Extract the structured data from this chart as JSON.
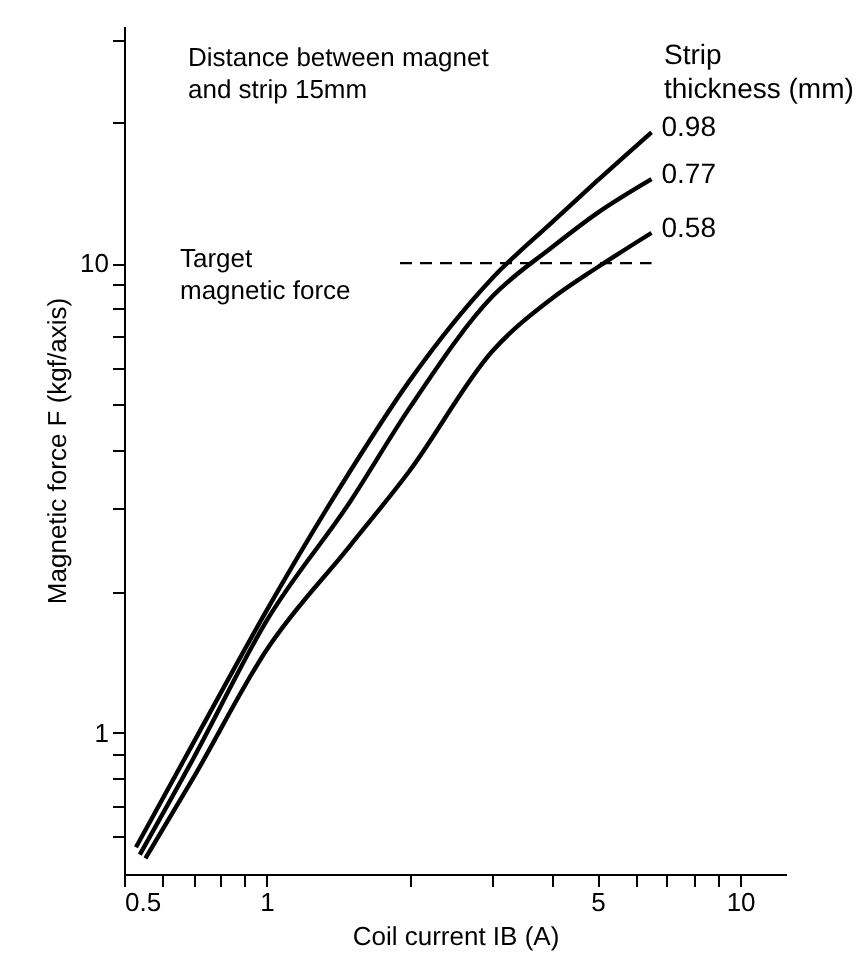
{
  "chart_data": {
    "type": "line",
    "xlabel": "Coil current  IB (A)",
    "ylabel": "Magnetic force  F (kgf/axis)",
    "legend_title": "Strip thickness (mm)",
    "annotations": [
      "Distance between magnet and strip 15mm"
    ],
    "series": [
      {
        "name": "0.98",
        "color": "#000000",
        "x": [
          0.53,
          0.7,
          1,
          1.5,
          2,
          3,
          4,
          5,
          6.5
        ],
        "values": [
          0.57,
          0.95,
          1.82,
          3.6,
          5.6,
          9.3,
          12.2,
          15,
          19
        ]
      },
      {
        "name": "0.77",
        "color": "#000000",
        "x": [
          0.54,
          0.7,
          1,
          1.5,
          2,
          3,
          4,
          5,
          6.5
        ],
        "values": [
          0.55,
          0.88,
          1.73,
          3.1,
          4.9,
          8.5,
          10.8,
          12.8,
          15.1
        ]
      },
      {
        "name": "0.58",
        "color": "#000000",
        "x": [
          0.555,
          0.7,
          1,
          1.5,
          2,
          3,
          4,
          5,
          6.5
        ],
        "values": [
          0.54,
          0.8,
          1.5,
          2.5,
          3.6,
          6.5,
          8.4,
          9.8,
          11.6
        ]
      }
    ],
    "ref_lines": [
      {
        "axis": "y",
        "value": 10,
        "label": "Target magnetic force",
        "line_style": "dashed"
      }
    ],
    "log": "xy",
    "xlim": [
      0.5,
      12.5
    ],
    "ylim": [
      0.5,
      32
    ],
    "xticks": [
      0.5,
      {
        "value": 0.6,
        "label": null
      },
      {
        "value": 0.7,
        "label": null
      },
      {
        "value": 0.8,
        "label": null
      },
      {
        "value": 0.9,
        "label": null
      },
      1,
      {
        "value": 2,
        "label": null
      },
      {
        "value": 3,
        "label": null
      },
      {
        "value": 4,
        "label": null
      },
      5,
      {
        "value": 6,
        "label": null
      },
      {
        "value": 7,
        "label": null
      },
      {
        "value": 8,
        "label": null
      },
      {
        "value": 9,
        "label": null
      },
      10
    ],
    "yticks": [
      {
        "value": 0.6,
        "label": null
      },
      {
        "value": 0.7,
        "label": null
      },
      {
        "value": 0.8,
        "label": null
      },
      {
        "value": 0.9,
        "label": null
      },
      1,
      {
        "value": 2,
        "label": null
      },
      {
        "value": 3,
        "label": null
      },
      {
        "value": 4,
        "label": null
      },
      {
        "value": 5,
        "label": null
      },
      {
        "value": 6,
        "label": null
      },
      {
        "value": 7,
        "label": null
      },
      {
        "value": 8,
        "label": null
      },
      {
        "value": 9,
        "label": null
      },
      10,
      {
        "value": 20,
        "label": null
      },
      {
        "value": 30,
        "label": null
      }
    ],
    "grid": false,
    "legend": false,
    "marker": "none",
    "line_style": "solid"
  }
}
